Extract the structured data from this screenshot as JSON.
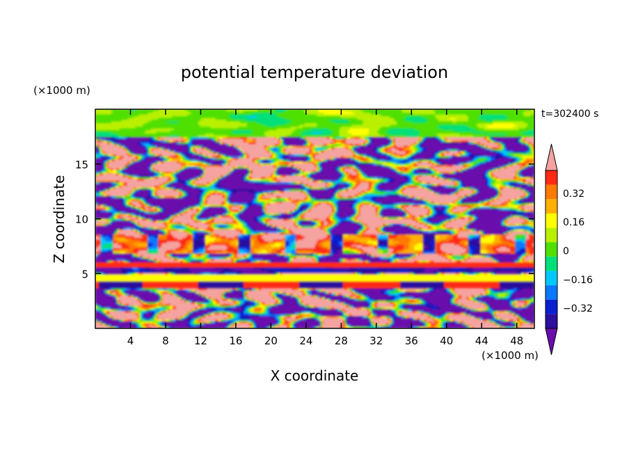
{
  "chart_data": {
    "type": "heatmap",
    "title": "potential temperature deviation",
    "time_label": "t=302400 s",
    "xlabel": "X coordinate",
    "ylabel": "Z coordinate",
    "x_unit": "(×1000 m)",
    "y_unit": "(×1000 m)",
    "xlim": [
      0,
      50
    ],
    "ylim": [
      0,
      20
    ],
    "x_ticks": [
      "4",
      "8",
      "12",
      "16",
      "20",
      "24",
      "28",
      "32",
      "36",
      "40",
      "44",
      "48"
    ],
    "y_ticks": [
      "5",
      "10",
      "15"
    ],
    "colorbar": {
      "min": -0.44,
      "max": 0.44,
      "step": 0.08,
      "tick_labels": [
        "0.32",
        "0.16",
        "0",
        "−0.16",
        "−0.32"
      ],
      "tick_values": [
        0.32,
        0.16,
        0,
        -0.16,
        -0.32
      ],
      "colors": [
        "#6a0dad",
        "#2b0f9e",
        "#0a1fd0",
        "#0a78ff",
        "#00c8ff",
        "#00e07a",
        "#4fe000",
        "#b8f000",
        "#ffff00",
        "#ffb000",
        "#ff7a00",
        "#ff2a14",
        "#f5a3a0"
      ],
      "extend": "both"
    }
  }
}
